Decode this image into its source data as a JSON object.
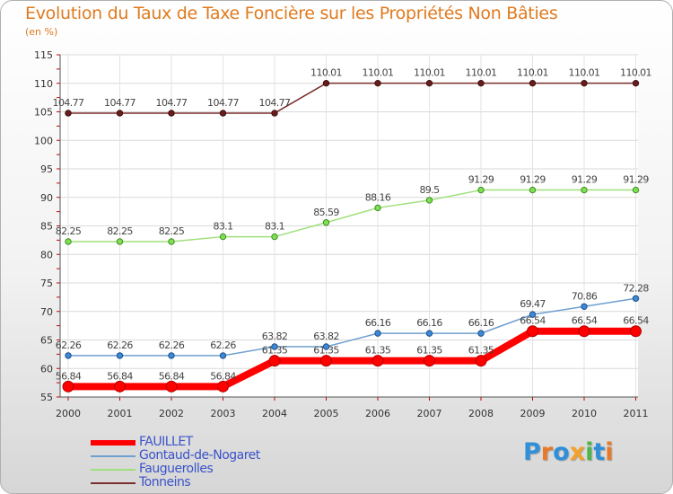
{
  "chart_data": {
    "type": "line",
    "title": "Evolution du Taux de Taxe Foncière sur les Propriétés Non Bâties",
    "subtitle": "(en %)",
    "xlabel": "",
    "ylabel": "",
    "ylim": [
      55,
      115
    ],
    "yticks": [
      55,
      60,
      65,
      70,
      75,
      80,
      85,
      90,
      95,
      100,
      105,
      110,
      115
    ],
    "categories": [
      "2000",
      "2001",
      "2002",
      "2003",
      "2004",
      "2005",
      "2006",
      "2007",
      "2008",
      "2009",
      "2010",
      "2011"
    ],
    "grid": true,
    "legend_position": "bottom-left",
    "series": [
      {
        "name": "Tonneins",
        "color": "#7b2e2e",
        "values": [
          104.77,
          104.77,
          104.77,
          104.77,
          104.77,
          110.01,
          110.01,
          110.01,
          110.01,
          110.01,
          110.01,
          110.01
        ],
        "labels": [
          "104.77",
          "104.77",
          "104.77",
          "104.77",
          "104.77",
          "110.01",
          "110.01",
          "110.01",
          "110.01",
          "110.01",
          "110.01",
          "110.01"
        ]
      },
      {
        "name": "Fauguerolles",
        "color": "#9fe07a",
        "values": [
          82.25,
          82.25,
          82.25,
          83.1,
          83.1,
          85.59,
          88.16,
          89.5,
          91.29,
          91.29,
          91.29,
          91.29
        ],
        "labels": [
          "82.25",
          "82.25",
          "82.25",
          "83.1",
          "83.1",
          "85.59",
          "88.16",
          "89.5",
          "91.29",
          "91.29",
          "91.29",
          "91.29"
        ]
      },
      {
        "name": "Gontaud-de-Nogaret",
        "color": "#6fa0d0",
        "values": [
          62.26,
          62.26,
          62.26,
          62.26,
          63.82,
          63.82,
          66.16,
          66.16,
          66.16,
          69.47,
          70.86,
          72.28
        ],
        "labels": [
          "62.26",
          "62.26",
          "62.26",
          "62.26",
          "63.82",
          "63.82",
          "66.16",
          "66.16",
          "66.16",
          "69.47",
          "70.86",
          "72.28"
        ]
      },
      {
        "name": "FAUILLET",
        "color": "#ff0000",
        "values": [
          56.84,
          56.84,
          56.84,
          56.84,
          61.35,
          61.35,
          61.35,
          61.35,
          61.35,
          66.54,
          66.54,
          66.54
        ],
        "labels": [
          "56.84",
          "56.84",
          "56.84",
          "56.84",
          "61.35",
          "61.35",
          "61.35",
          "61.35",
          "61.35",
          "66.54",
          "66.54",
          "66.54"
        ]
      }
    ]
  },
  "legend": {
    "items": [
      {
        "name": "FAUILLET",
        "color": "#ff0000"
      },
      {
        "name": "Gontaud-de-Nogaret",
        "color": "#6fa0d0"
      },
      {
        "name": "Fauguerolles",
        "color": "#9fe07a"
      },
      {
        "name": "Tonneins",
        "color": "#7b2e2e"
      }
    ]
  },
  "brand": {
    "text": "Proxiti",
    "letter_colors": [
      "#2f8fd8",
      "#e8792a",
      "#2f8fd8",
      "#f2a12a",
      "#4bb64a",
      "#2f8fd8",
      "#e8792a"
    ]
  }
}
